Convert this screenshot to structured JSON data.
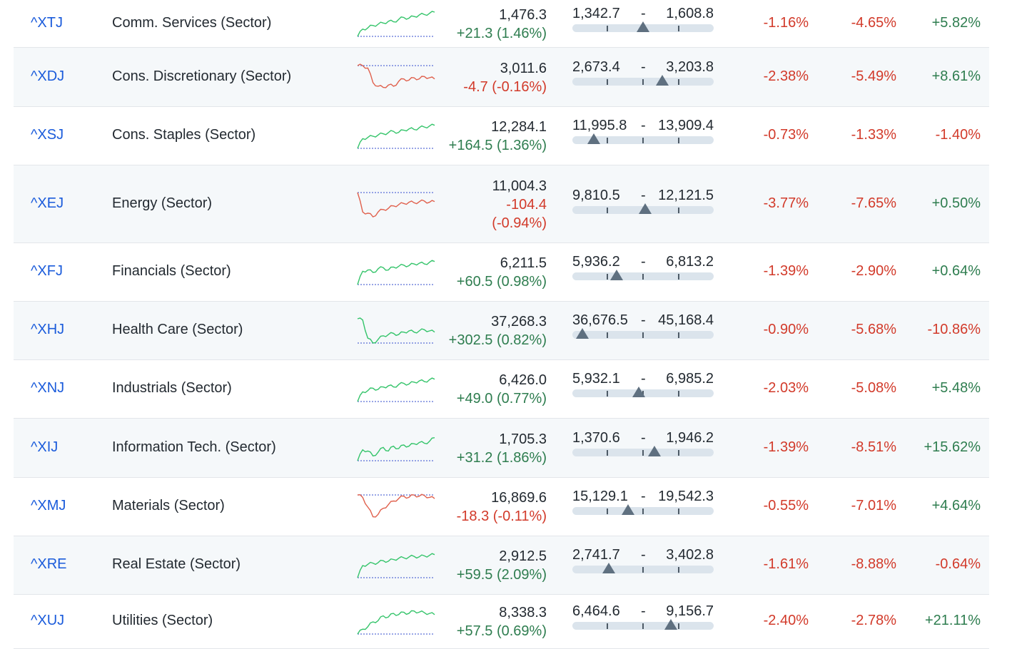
{
  "colors": {
    "up": "#2e7d4f",
    "down": "#d23a2a",
    "spark_up": "#34c46a",
    "spark_down": "#e0604c",
    "baseline": "#5b6fd6",
    "symbol": "#1a5bdb"
  },
  "rows": [
    {
      "symbol": "^XTJ",
      "name": "Comm. Services (Sector)",
      "price": "1,476.3",
      "change": "+21.3 (1.46%)",
      "dir": "up",
      "low": "1,342.7",
      "high": "1,608.8",
      "range_pos": 0.5,
      "p1": "-1.16%",
      "p1_dir": "down",
      "p2": "-4.65%",
      "p2_dir": "down",
      "p3": "+5.82%",
      "p3_dir": "up",
      "spark": [
        0.0,
        0.3,
        0.35,
        0.45,
        0.5,
        0.55,
        0.62,
        0.6,
        0.7,
        0.78,
        0.75,
        0.82,
        0.88,
        0.9,
        0.95,
        1.0
      ]
    },
    {
      "symbol": "^XDJ",
      "name": "Cons. Discretionary (Sector)",
      "price": "3,011.6",
      "change": "-4.7 (-0.16%)",
      "dir": "down",
      "low": "2,673.4",
      "high": "3,203.8",
      "range_pos": 0.637,
      "p1": "-2.38%",
      "p1_dir": "down",
      "p2": "-5.49%",
      "p2_dir": "down",
      "p3": "+8.61%",
      "p3_dir": "up",
      "spark": [
        1.0,
        1.0,
        0.9,
        0.3,
        0.15,
        0.1,
        0.2,
        0.15,
        0.35,
        0.45,
        0.4,
        0.5,
        0.45,
        0.55,
        0.5,
        0.45
      ]
    },
    {
      "symbol": "^XSJ",
      "name": "Cons. Staples (Sector)",
      "price": "12,284.1",
      "change": "+164.5 (1.36%)",
      "dir": "up",
      "low": "11,995.8",
      "high": "13,909.4",
      "range_pos": 0.15,
      "p1": "-0.73%",
      "p1_dir": "down",
      "p2": "-1.33%",
      "p2_dir": "down",
      "p3": "-1.40%",
      "p3_dir": "down",
      "spark": [
        0.0,
        0.4,
        0.45,
        0.5,
        0.55,
        0.6,
        0.65,
        0.7,
        0.66,
        0.75,
        0.8,
        0.78,
        0.85,
        0.88,
        0.92,
        0.95
      ]
    },
    {
      "symbol": "^XEJ",
      "name": "Energy (Sector)",
      "price": "11,004.3",
      "change": "-104.4",
      "change2": "(-0.94%)",
      "dir": "down",
      "low": "9,810.5",
      "high": "12,121.5",
      "range_pos": 0.516,
      "p1": "-3.77%",
      "p1_dir": "down",
      "p2": "-7.65%",
      "p2_dir": "down",
      "p3": "+0.50%",
      "p3_dir": "up",
      "spark": [
        1.0,
        0.2,
        0.15,
        0.0,
        0.2,
        0.3,
        0.35,
        0.45,
        0.5,
        0.55,
        0.6,
        0.58,
        0.62,
        0.65,
        0.6,
        0.63
      ]
    },
    {
      "symbol": "^XFJ",
      "name": "Financials (Sector)",
      "price": "6,211.5",
      "change": "+60.5 (0.98%)",
      "dir": "up",
      "low": "5,936.2",
      "high": "6,813.2",
      "range_pos": 0.314,
      "p1": "-1.39%",
      "p1_dir": "down",
      "p2": "-2.90%",
      "p2_dir": "down",
      "p3": "+0.64%",
      "p3_dir": "up",
      "spark": [
        0.0,
        0.55,
        0.6,
        0.5,
        0.65,
        0.7,
        0.6,
        0.72,
        0.75,
        0.8,
        0.78,
        0.85,
        0.88,
        0.85,
        0.92,
        0.95
      ]
    },
    {
      "symbol": "^XHJ",
      "name": "Health Care (Sector)",
      "price": "37,268.3",
      "change": "+302.5 (0.82%)",
      "dir": "up",
      "low": "36,676.5",
      "high": "45,168.4",
      "range_pos": 0.07,
      "p1": "-0.90%",
      "p1_dir": "down",
      "p2": "-5.68%",
      "p2_dir": "down",
      "p3": "-10.86%",
      "p3_dir": "down",
      "spark": [
        1.0,
        0.95,
        0.2,
        0.0,
        0.15,
        0.3,
        0.35,
        0.4,
        0.35,
        0.45,
        0.5,
        0.45,
        0.5,
        0.55,
        0.5,
        0.45
      ]
    },
    {
      "symbol": "^XNJ",
      "name": "Industrials (Sector)",
      "price": "6,426.0",
      "change": "+49.0 (0.77%)",
      "dir": "up",
      "low": "5,932.1",
      "high": "6,985.2",
      "range_pos": 0.469,
      "p1": "-2.03%",
      "p1_dir": "down",
      "p2": "-5.08%",
      "p2_dir": "down",
      "p3": "+5.48%",
      "p3_dir": "up",
      "spark": [
        0.0,
        0.4,
        0.45,
        0.55,
        0.5,
        0.6,
        0.65,
        0.6,
        0.7,
        0.75,
        0.72,
        0.8,
        0.85,
        0.82,
        0.9,
        0.92
      ]
    },
    {
      "symbol": "^XIJ",
      "name": "Information Tech. (Sector)",
      "price": "1,705.3",
      "change": "+31.2 (1.86%)",
      "dir": "up",
      "low": "1,370.6",
      "high": "1,946.2",
      "range_pos": 0.581,
      "p1": "-1.39%",
      "p1_dir": "down",
      "p2": "-8.51%",
      "p2_dir": "down",
      "p3": "+15.62%",
      "p3_dir": "up",
      "spark": [
        0.0,
        0.45,
        0.4,
        0.2,
        0.35,
        0.55,
        0.4,
        0.6,
        0.5,
        0.65,
        0.6,
        0.7,
        0.75,
        0.72,
        0.8,
        0.95
      ]
    },
    {
      "symbol": "^XMJ",
      "name": "Materials (Sector)",
      "price": "16,869.6",
      "change": "-18.3 (-0.11%)",
      "dir": "down",
      "low": "15,129.1",
      "high": "19,542.3",
      "range_pos": 0.394,
      "p1": "-0.55%",
      "p1_dir": "down",
      "p2": "-7.01%",
      "p2_dir": "down",
      "p3": "+4.64%",
      "p3_dir": "up",
      "spark": [
        1.0,
        0.9,
        0.5,
        0.1,
        0.2,
        0.45,
        0.6,
        0.75,
        0.85,
        0.95,
        0.9,
        1.0,
        0.95,
        0.98,
        0.9,
        0.85
      ]
    },
    {
      "symbol": "^XRE",
      "name": "Real Estate (Sector)",
      "price": "2,912.5",
      "change": "+59.5 (2.09%)",
      "dir": "up",
      "low": "2,741.7",
      "high": "3,402.8",
      "range_pos": 0.258,
      "p1": "-1.61%",
      "p1_dir": "down",
      "p2": "-8.88%",
      "p2_dir": "down",
      "p3": "-0.64%",
      "p3_dir": "down",
      "spark": [
        0.0,
        0.5,
        0.55,
        0.6,
        0.62,
        0.7,
        0.68,
        0.75,
        0.8,
        0.82,
        0.85,
        0.88,
        0.86,
        0.9,
        0.92,
        0.95
      ]
    },
    {
      "symbol": "^XUJ",
      "name": "Utilities (Sector)",
      "price": "8,338.3",
      "change": "+57.5 (0.69%)",
      "dir": "up",
      "low": "6,464.6",
      "high": "9,156.7",
      "range_pos": 0.696,
      "p1": "-2.40%",
      "p1_dir": "down",
      "p2": "-2.78%",
      "p2_dir": "down",
      "p3": "+21.11%",
      "p3_dir": "up",
      "spark": [
        0.0,
        0.2,
        0.3,
        0.5,
        0.55,
        0.75,
        0.7,
        0.85,
        0.8,
        0.9,
        0.85,
        0.95,
        0.9,
        0.88,
        0.85,
        0.8
      ]
    }
  ]
}
